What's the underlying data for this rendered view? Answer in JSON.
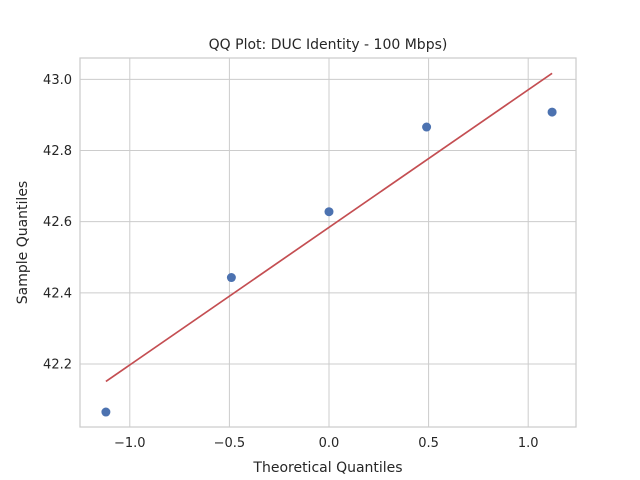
{
  "chart_data": {
    "type": "scatter",
    "title": "QQ Plot: DUC Identity - 100 Mbps)",
    "xlabel": "Theoretical Quantiles",
    "ylabel": "Sample Quantiles",
    "xlim": [
      -1.25,
      1.24
    ],
    "ylim": [
      42.023,
      43.06
    ],
    "xticks": [
      -1.0,
      -0.5,
      0.0,
      0.5,
      1.0
    ],
    "xtick_labels": [
      "−1.0",
      "−0.5",
      "0.0",
      "0.5",
      "1.0"
    ],
    "yticks": [
      42.2,
      42.4,
      42.6,
      42.8,
      43.0
    ],
    "ytick_labels": [
      "42.2",
      "42.4",
      "42.6",
      "42.8",
      "43.0"
    ],
    "grid": true,
    "series": [
      {
        "kind": "points",
        "color": "#4c72b0",
        "x": [
          -1.12,
          -0.49,
          0.0,
          0.49,
          1.12
        ],
        "y": [
          42.065,
          42.443,
          42.628,
          42.866,
          42.908
        ]
      },
      {
        "kind": "line",
        "color": "#c44e52",
        "x": [
          -1.12,
          1.12
        ],
        "y": [
          42.151,
          43.017
        ]
      }
    ]
  }
}
